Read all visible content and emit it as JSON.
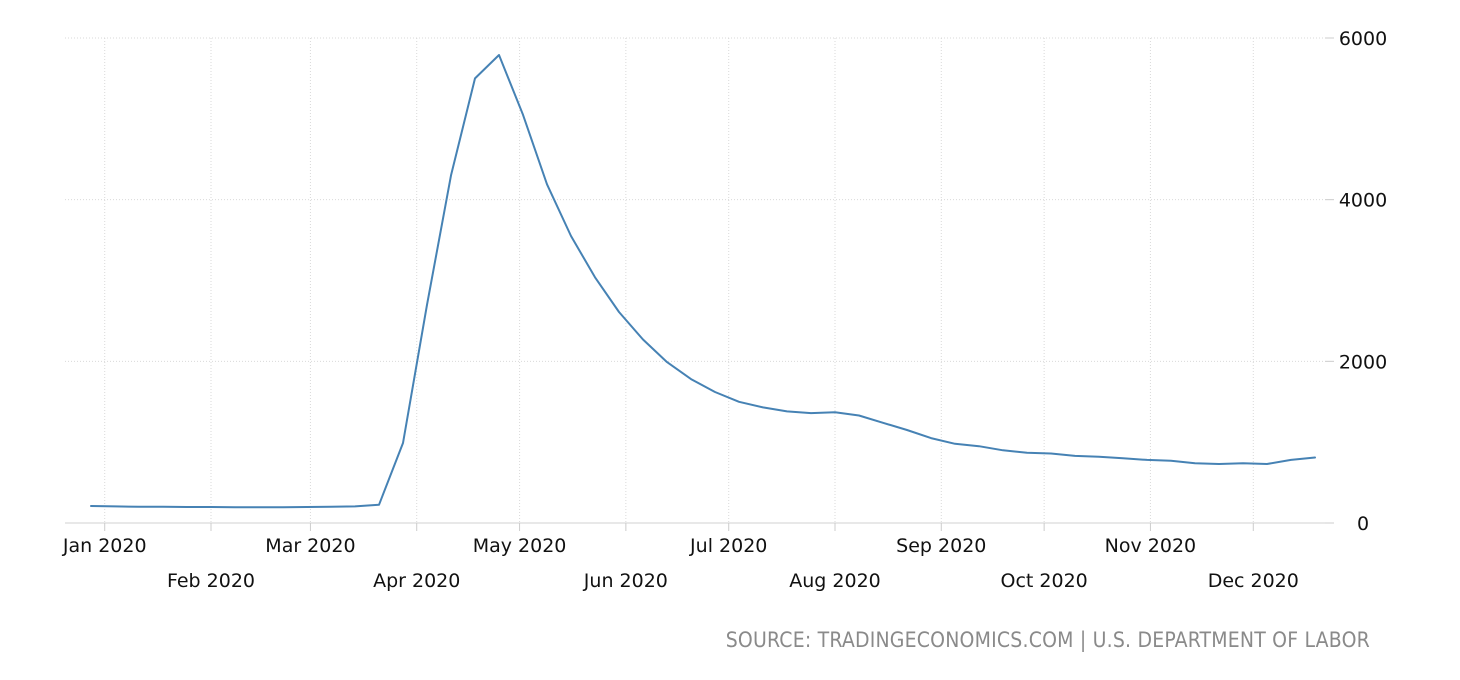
{
  "chart_data": {
    "type": "line",
    "title": "",
    "xlabel": "",
    "ylabel": "",
    "ylim": [
      0,
      6000
    ],
    "y_ticks": [
      "6000",
      "4000",
      "2000",
      "0"
    ],
    "y_tick_values": [
      6000,
      4000,
      2000,
      0
    ],
    "y_axis_side": "right",
    "grid": true,
    "legend": "none",
    "x_tick_labels": [
      {
        "label": "Jan 2020",
        "date": "2020-01-01",
        "row": 0
      },
      {
        "label": "Feb 2020",
        "date": "2020-02-01",
        "row": 1
      },
      {
        "label": "Mar 2020",
        "date": "2020-03-01",
        "row": 0
      },
      {
        "label": "Apr 2020",
        "date": "2020-04-01",
        "row": 1
      },
      {
        "label": "May 2020",
        "date": "2020-05-01",
        "row": 0
      },
      {
        "label": "Jun 2020",
        "date": "2020-06-01",
        "row": 1
      },
      {
        "label": "Jul 2020",
        "date": "2020-07-01",
        "row": 0
      },
      {
        "label": "Aug 2020",
        "date": "2020-08-01",
        "row": 1
      },
      {
        "label": "Sep 2020",
        "date": "2020-09-01",
        "row": 0
      },
      {
        "label": "Oct 2020",
        "date": "2020-10-01",
        "row": 1
      },
      {
        "label": "Nov 2020",
        "date": "2020-11-01",
        "row": 0
      },
      {
        "label": "Dec 2020",
        "date": "2020-12-01",
        "row": 1
      }
    ],
    "series": [
      {
        "color": "#4682b4",
        "x": [
          "2019-12-28",
          "2020-01-04",
          "2020-01-11",
          "2020-01-18",
          "2020-01-25",
          "2020-02-01",
          "2020-02-08",
          "2020-02-15",
          "2020-02-22",
          "2020-02-29",
          "2020-03-07",
          "2020-03-14",
          "2020-03-21",
          "2020-03-28",
          "2020-04-04",
          "2020-04-11",
          "2020-04-18",
          "2020-04-25",
          "2020-05-02",
          "2020-05-09",
          "2020-05-16",
          "2020-05-23",
          "2020-05-30",
          "2020-06-06",
          "2020-06-13",
          "2020-06-20",
          "2020-06-27",
          "2020-07-04",
          "2020-07-11",
          "2020-07-18",
          "2020-07-25",
          "2020-08-01",
          "2020-08-08",
          "2020-08-15",
          "2020-08-22",
          "2020-08-29",
          "2020-09-05",
          "2020-09-12",
          "2020-09-19",
          "2020-09-26",
          "2020-10-03",
          "2020-10-10",
          "2020-10-17",
          "2020-10-24",
          "2020-10-31",
          "2020-11-07",
          "2020-11-14",
          "2020-11-21",
          "2020-11-28",
          "2020-12-05",
          "2020-12-12",
          "2020-12-19"
        ],
        "values": [
          210,
          205,
          200,
          200,
          198,
          198,
          196,
          196,
          196,
          198,
          202,
          205,
          225,
          990,
          2700,
          4300,
          5500,
          5790,
          5050,
          4190,
          3550,
          3040,
          2610,
          2270,
          1990,
          1780,
          1620,
          1500,
          1430,
          1380,
          1360,
          1370,
          1330,
          1240,
          1150,
          1050,
          980,
          950,
          900,
          870,
          860,
          830,
          820,
          800,
          780,
          770,
          740,
          730,
          740,
          730,
          780,
          810
        ]
      }
    ]
  },
  "source": "SOURCE: TRADINGECONOMICS.COM | U.S. DEPARTMENT OF LABOR"
}
